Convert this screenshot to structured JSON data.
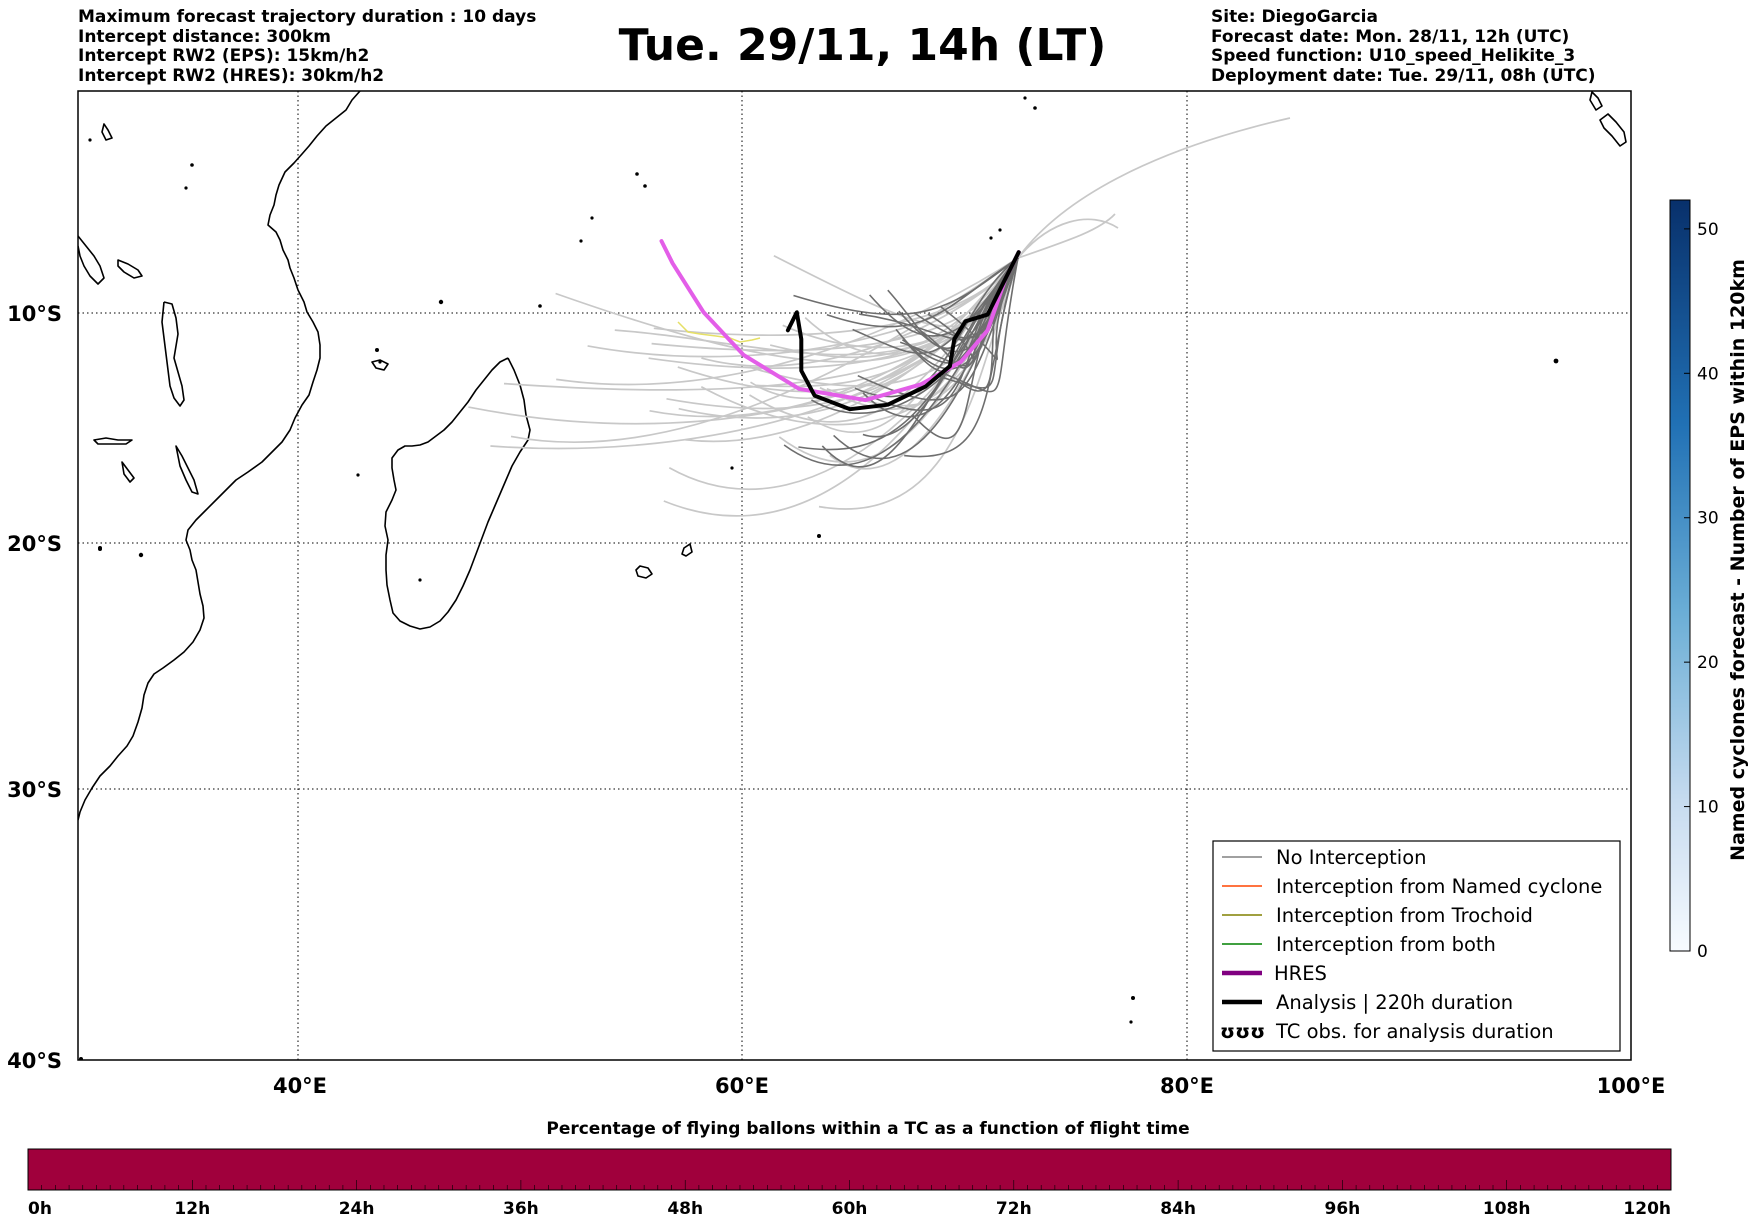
{
  "title": "Tue. 29/11, 14h (LT)",
  "info_left": [
    "Maximum forecast trajectory duration : 10 days",
    "Intercept distance: 300km",
    "Intercept RW2 (EPS):  15km/h2",
    "Intercept RW2 (HRES): 30km/h2"
  ],
  "info_right": [
    "Site: DiegoGarcia",
    "Forecast date: Mon. 28/11, 12h (UTC)",
    "Speed function: U10_speed_Helikite_3",
    "Deployment date: Tue. 29/11, 08h (UTC)"
  ],
  "map": {
    "lon_range": [
      30,
      100
    ],
    "lat_range": [
      -40,
      0
    ],
    "lon_ticks": [
      "40°E",
      "60°E",
      "80°E",
      "100°E"
    ],
    "lat_ticks": [
      "10°S",
      "20°S",
      "30°S",
      "40°S"
    ],
    "grid": "dotted"
  },
  "legend": {
    "placement": "lower-right",
    "items": [
      {
        "label": "No Interception",
        "color": "#808080",
        "style": "thin-line"
      },
      {
        "label": "Interception from Named cyclone",
        "color": "#ff4500",
        "style": "thin-line"
      },
      {
        "label": "Interception from Trochoid",
        "color": "#808000",
        "style": "thin-line"
      },
      {
        "label": "Interception from both",
        "color": "#008000",
        "style": "thin-line"
      },
      {
        "label": "HRES",
        "color": "#800080",
        "style": "thick-line"
      },
      {
        "label": "Analysis | 220h duration",
        "color": "#000000",
        "style": "thick-line"
      },
      {
        "label": "TC obs. for analysis duration",
        "color": "#000000",
        "style": "tc-symbol",
        "symbol": "ʊʊʊ"
      }
    ]
  },
  "colorbar_right": {
    "label": "Named cyclones forecast - Number of EPS within 120km",
    "ticks": [
      "0",
      "10",
      "20",
      "30",
      "40",
      "50"
    ],
    "range": [
      0,
      52
    ],
    "cmap": "Blues"
  },
  "colorbar_bottom": {
    "title": "Percentage of flying ballons within a TC as a function of flight time",
    "ticks": [
      "0h",
      "12h",
      "24h",
      "36h",
      "48h",
      "60h",
      "72h",
      "84h",
      "96h",
      "108h",
      "120h"
    ],
    "fill_color": "#a0003c"
  },
  "trajectories": {
    "deployment": {
      "lon": 72.4,
      "lat": -7.3
    },
    "hres": [
      [
        72.4,
        -7.3
      ],
      [
        71.8,
        -8.5
      ],
      [
        71.0,
        -10.8
      ],
      [
        69.8,
        -12.2
      ],
      [
        68.0,
        -13.2
      ],
      [
        65.5,
        -13.9
      ],
      [
        62.5,
        -13.4
      ],
      [
        60.0,
        -11.9
      ],
      [
        58.2,
        -10.0
      ],
      [
        56.8,
        -7.8
      ],
      [
        56.3,
        -6.8
      ]
    ],
    "analysis": [
      [
        72.4,
        -7.3
      ],
      [
        71.7,
        -8.7
      ],
      [
        71.0,
        -10.1
      ],
      [
        70.0,
        -10.4
      ],
      [
        69.5,
        -11.2
      ],
      [
        69.3,
        -12.4
      ],
      [
        68.2,
        -13.3
      ],
      [
        66.5,
        -14.1
      ],
      [
        64.8,
        -14.3
      ],
      [
        63.2,
        -13.7
      ],
      [
        62.6,
        -12.6
      ],
      [
        62.6,
        -11.2
      ],
      [
        62.4,
        -10.0
      ],
      [
        62.0,
        -10.8
      ]
    ]
  }
}
